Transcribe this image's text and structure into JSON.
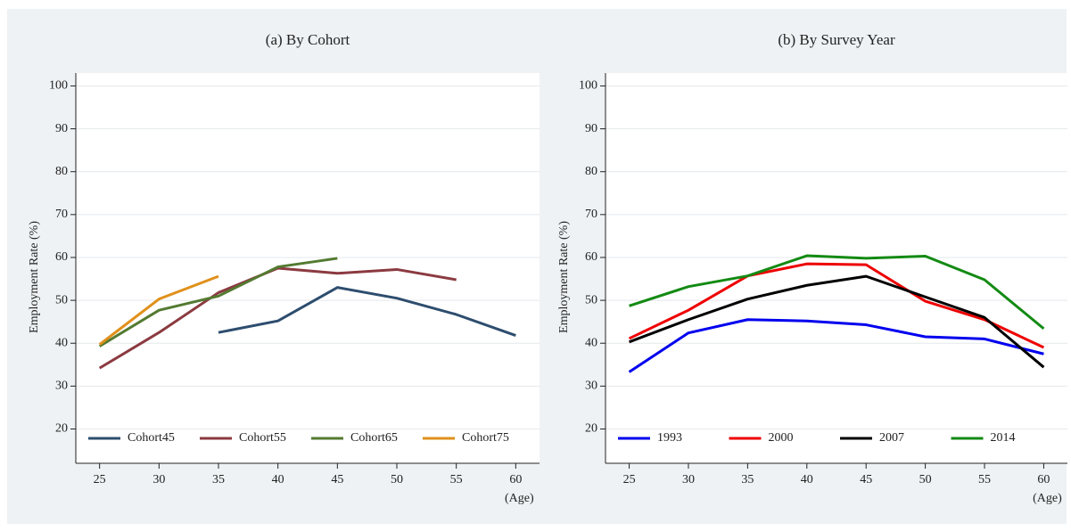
{
  "chart_data": [
    {
      "type": "line",
      "title": "(a) By Cohort",
      "y_label": "Employment Rate (%)",
      "x_label": "(Age)",
      "x": [
        25,
        30,
        35,
        40,
        45,
        50,
        55,
        60
      ],
      "series": [
        {
          "name": "Cohort45",
          "color": "#2d4d6e",
          "values": [
            null,
            null,
            42.5,
            45.2,
            53,
            50.5,
            46.7,
            41.8
          ]
        },
        {
          "name": "Cohort55",
          "color": "#8b3a40",
          "values": [
            34.2,
            42.5,
            51.8,
            57.5,
            56.3,
            57.2,
            54.8,
            null
          ]
        },
        {
          "name": "Cohort65",
          "color": "#537a31",
          "values": [
            39.3,
            47.7,
            51,
            57.8,
            59.8,
            null,
            null,
            null
          ]
        },
        {
          "name": "Cohort75",
          "color": "#e0901b",
          "values": [
            39.7,
            50.3,
            55.6,
            null,
            null,
            null,
            null,
            null
          ]
        }
      ],
      "xlim": [
        23,
        62
      ],
      "ylim": [
        12,
        103
      ],
      "xticks": [
        25,
        30,
        35,
        40,
        45,
        50,
        55,
        60
      ],
      "yticks": [
        20,
        30,
        40,
        50,
        60,
        70,
        80,
        90,
        100
      ],
      "grid": true
    },
    {
      "type": "line",
      "title": "(b) By Survey Year",
      "y_label": "Employment Rate (%)",
      "x_label": "(Age)",
      "x": [
        25,
        30,
        35,
        40,
        45,
        50,
        55,
        60
      ],
      "series": [
        {
          "name": "1993",
          "color": "#0000ee",
          "values": [
            33.3,
            42.4,
            45.5,
            45.2,
            44.3,
            41.5,
            41,
            37.5
          ]
        },
        {
          "name": "2000",
          "color": "#ee0000",
          "values": [
            41.1,
            47.7,
            55.7,
            58.5,
            58.3,
            49.8,
            45.5,
            39
          ]
        },
        {
          "name": "2007",
          "color": "#000000",
          "values": [
            40.3,
            45.5,
            50.3,
            53.5,
            55.6,
            50.8,
            46,
            34.4
          ]
        },
        {
          "name": "2014",
          "color": "#138a13",
          "values": [
            48.7,
            53.2,
            55.7,
            60.4,
            59.8,
            60.3,
            54.8,
            43.4
          ]
        }
      ],
      "xlim": [
        23,
        62
      ],
      "ylim": [
        12,
        103
      ],
      "xticks": [
        25,
        30,
        35,
        40,
        45,
        50,
        55,
        60
      ],
      "yticks": [
        20,
        30,
        40,
        50,
        60,
        70,
        80,
        90,
        100
      ],
      "grid": true
    }
  ]
}
